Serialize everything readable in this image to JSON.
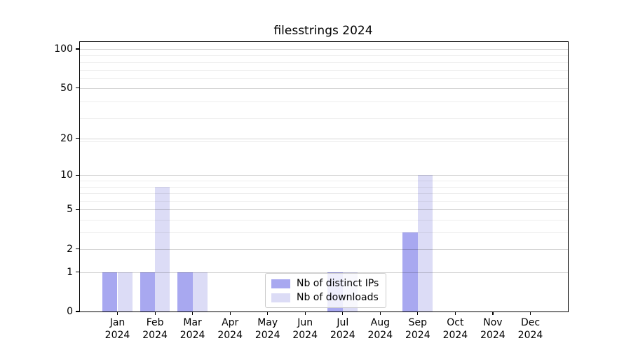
{
  "chart_data": {
    "type": "bar",
    "title": "filesstrings 2024",
    "categories": [
      {
        "month": "Jan",
        "year": "2024"
      },
      {
        "month": "Feb",
        "year": "2024"
      },
      {
        "month": "Mar",
        "year": "2024"
      },
      {
        "month": "Apr",
        "year": "2024"
      },
      {
        "month": "May",
        "year": "2024"
      },
      {
        "month": "Jun",
        "year": "2024"
      },
      {
        "month": "Jul",
        "year": "2024"
      },
      {
        "month": "Aug",
        "year": "2024"
      },
      {
        "month": "Sep",
        "year": "2024"
      },
      {
        "month": "Oct",
        "year": "2024"
      },
      {
        "month": "Nov",
        "year": "2024"
      },
      {
        "month": "Dec",
        "year": "2024"
      }
    ],
    "series": [
      {
        "name": "Nb of distinct IPs",
        "color": "#a8a8f0",
        "values": [
          1,
          1,
          1,
          0,
          0,
          0,
          1,
          0,
          3,
          0,
          0,
          0
        ]
      },
      {
        "name": "Nb of downloads",
        "color": "#dcdcf6",
        "values": [
          1,
          8,
          1,
          0,
          0,
          0,
          1,
          0,
          10,
          0,
          0,
          0
        ]
      }
    ],
    "axis": {
      "yscale": "log1p",
      "yticks": [
        0,
        1,
        2,
        5,
        10,
        20,
        50,
        100
      ],
      "yticks_minor": [
        3,
        4,
        6,
        7,
        8,
        9,
        19,
        29,
        39,
        59,
        69,
        79,
        89
      ],
      "ylim_u_top": 114.2,
      "grid": "horizontal major+minor, drawn above bars"
    },
    "legend": {
      "position": "lower center"
    }
  },
  "style": {
    "background": "#ffffff",
    "grid_major": "#d2d2d2",
    "grid_minor": "#ebebeb",
    "axis_color": "#000000",
    "legend_border": "#cccccc",
    "legend_background": "rgba(255,255,255,0.8)",
    "text_color": "#000000"
  }
}
